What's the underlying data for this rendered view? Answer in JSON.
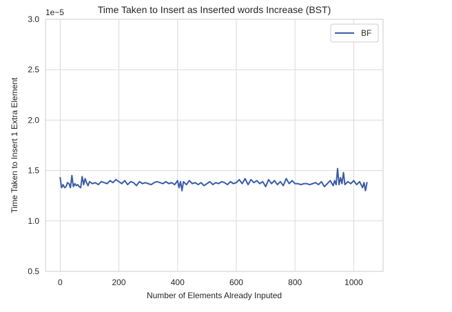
{
  "chart_data": {
    "type": "line",
    "title": "Time Taken to Insert as Inserted words Increase (BST)",
    "xlabel": "Number of Elements Already Inputed",
    "ylabel": "Time Taken to Insert 1 Extra Element",
    "y_offset_label": "1e−5",
    "xlim": [
      -50,
      1100
    ],
    "ylim": [
      0.5,
      3.0
    ],
    "x_ticks": [
      0,
      200,
      400,
      600,
      800,
      1000
    ],
    "x_tick_labels": [
      "0",
      "200",
      "400",
      "600",
      "800",
      "1000"
    ],
    "y_ticks": [
      0.5,
      1.0,
      1.5,
      2.0,
      2.5,
      3.0
    ],
    "y_tick_labels": [
      "0.5",
      "1.0",
      "1.5",
      "2.0",
      "2.5",
      "3.0"
    ],
    "grid": true,
    "legend_position": "top-right",
    "series": [
      {
        "name": "BF",
        "color": "#3a5ba8",
        "x": [
          0,
          5,
          10,
          15,
          20,
          25,
          30,
          35,
          40,
          45,
          50,
          55,
          60,
          65,
          70,
          75,
          80,
          85,
          90,
          95,
          100,
          110,
          120,
          130,
          140,
          150,
          160,
          170,
          180,
          190,
          200,
          210,
          220,
          230,
          240,
          250,
          260,
          270,
          280,
          290,
          300,
          310,
          320,
          330,
          340,
          350,
          360,
          370,
          380,
          390,
          400,
          405,
          410,
          415,
          420,
          430,
          440,
          450,
          460,
          470,
          480,
          490,
          500,
          510,
          520,
          530,
          540,
          550,
          560,
          570,
          580,
          590,
          600,
          610,
          620,
          630,
          640,
          650,
          660,
          670,
          680,
          690,
          700,
          710,
          720,
          730,
          740,
          750,
          760,
          770,
          780,
          790,
          800,
          810,
          820,
          830,
          840,
          850,
          860,
          870,
          880,
          890,
          900,
          910,
          920,
          930,
          935,
          940,
          945,
          950,
          955,
          960,
          965,
          970,
          980,
          990,
          1000,
          1010,
          1020,
          1030,
          1035,
          1040,
          1045
        ],
        "values": [
          1.43,
          1.33,
          1.36,
          1.33,
          1.34,
          1.38,
          1.37,
          1.33,
          1.45,
          1.34,
          1.37,
          1.35,
          1.36,
          1.34,
          1.33,
          1.44,
          1.36,
          1.42,
          1.38,
          1.35,
          1.39,
          1.37,
          1.38,
          1.36,
          1.39,
          1.38,
          1.37,
          1.4,
          1.38,
          1.41,
          1.39,
          1.37,
          1.4,
          1.36,
          1.39,
          1.38,
          1.35,
          1.39,
          1.37,
          1.38,
          1.37,
          1.36,
          1.38,
          1.39,
          1.38,
          1.37,
          1.39,
          1.37,
          1.38,
          1.36,
          1.4,
          1.33,
          1.39,
          1.3,
          1.39,
          1.36,
          1.4,
          1.37,
          1.38,
          1.36,
          1.38,
          1.35,
          1.37,
          1.39,
          1.36,
          1.38,
          1.37,
          1.39,
          1.38,
          1.36,
          1.39,
          1.37,
          1.38,
          1.41,
          1.37,
          1.42,
          1.36,
          1.41,
          1.38,
          1.4,
          1.37,
          1.39,
          1.34,
          1.41,
          1.37,
          1.4,
          1.36,
          1.39,
          1.35,
          1.42,
          1.37,
          1.4,
          1.37,
          1.37,
          1.36,
          1.37,
          1.37,
          1.36,
          1.37,
          1.38,
          1.36,
          1.39,
          1.34,
          1.37,
          1.4,
          1.35,
          1.4,
          1.36,
          1.52,
          1.36,
          1.43,
          1.37,
          1.48,
          1.36,
          1.39,
          1.37,
          1.4,
          1.36,
          1.39,
          1.33,
          1.38,
          1.3,
          1.38
        ]
      }
    ]
  }
}
